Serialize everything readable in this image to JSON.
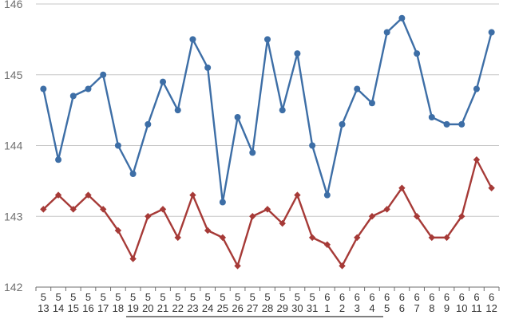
{
  "chart_data": {
    "type": "line",
    "categories": [
      "5\n13",
      "5\n14",
      "5\n15",
      "5\n16",
      "5\n17",
      "5\n18",
      "5\n19",
      "5\n20",
      "5\n21",
      "5\n22",
      "5\n23",
      "5\n24",
      "5\n25",
      "5\n26",
      "5\n27",
      "5\n28",
      "5\n29",
      "5\n30",
      "5\n31",
      "6\n1",
      "6\n2",
      "6\n3",
      "6\n4",
      "6\n5",
      "6\n6",
      "6\n7",
      "6\n8",
      "6\n9",
      "6\n10",
      "6\n11",
      "6\n12"
    ],
    "series": [
      {
        "color": "#3d6ea6",
        "marker": "circle",
        "values": [
          144.8,
          143.8,
          144.7,
          144.8,
          145.0,
          144.0,
          143.6,
          144.3,
          144.9,
          144.5,
          145.5,
          145.1,
          143.2,
          144.4,
          143.9,
          145.5,
          144.5,
          145.3,
          144.0,
          143.3,
          144.3,
          144.8,
          144.6,
          145.6,
          145.8,
          145.3,
          144.4,
          144.3,
          144.3,
          144.8,
          145.6
        ]
      },
      {
        "color": "#a63a37",
        "marker": "diamond",
        "values": [
          143.1,
          143.3,
          143.1,
          143.3,
          143.1,
          142.8,
          142.4,
          143.0,
          143.1,
          142.7,
          143.3,
          142.8,
          142.7,
          142.3,
          143.0,
          143.1,
          142.9,
          143.3,
          142.7,
          142.6,
          142.3,
          142.7,
          143.0,
          143.1,
          143.4,
          143.0,
          142.7,
          142.7,
          143.0,
          143.8,
          143.4
        ]
      }
    ],
    "y_ticks": [
      "142",
      "143",
      "144",
      "145",
      "146"
    ],
    "ylim": [
      142,
      146
    ],
    "grid": true,
    "gridline_color": "#c7c7c7",
    "axis_color": "#6f6f6f",
    "legend": "none"
  }
}
